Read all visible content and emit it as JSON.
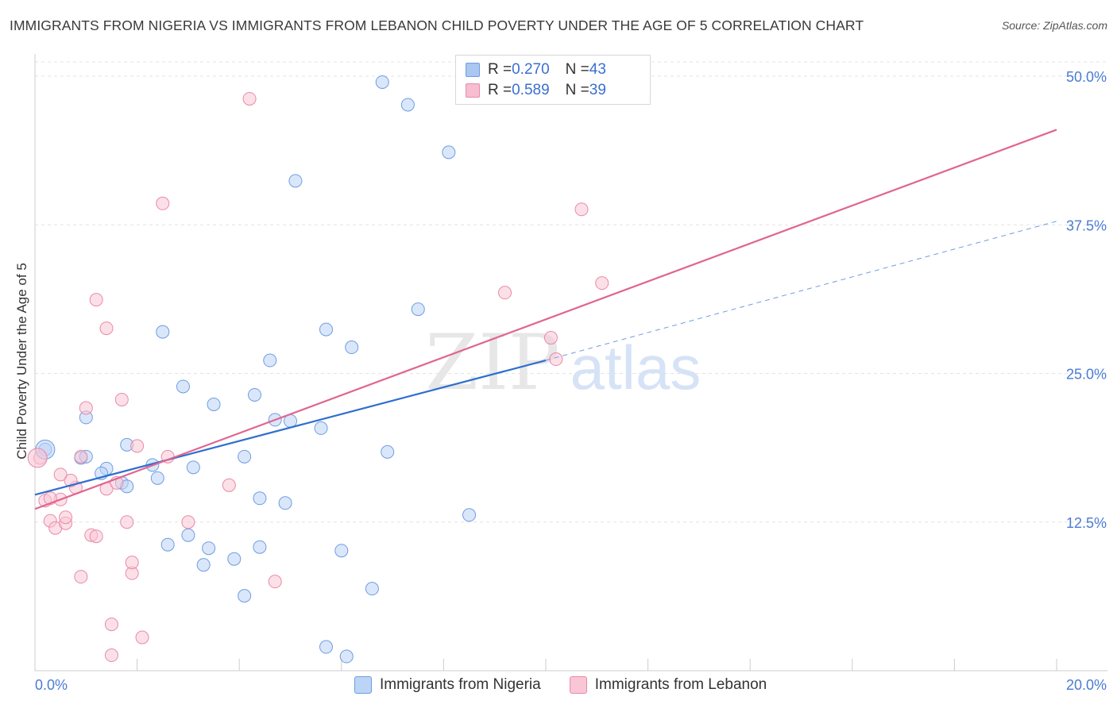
{
  "title": "IMMIGRANTS FROM NIGERIA VS IMMIGRANTS FROM LEBANON CHILD POVERTY UNDER THE AGE OF 5 CORRELATION CHART",
  "source": "Source: ZipAtlas.com",
  "watermark": {
    "zip": "ZIP",
    "atlas": "atlas"
  },
  "legend_box": {
    "rows": [
      {
        "r_label": "R = ",
        "r_value": "0.270",
        "n_label": "N = ",
        "n_value": "43",
        "color": "#a9c7f0",
        "border": "#6e9de0"
      },
      {
        "r_label": "R = ",
        "r_value": "0.589",
        "n_label": "N = ",
        "n_value": "39",
        "color": "#f7bdd0",
        "border": "#e88aa9"
      }
    ]
  },
  "bottom_legend": [
    {
      "label": "Immigrants from Nigeria",
      "color": "#bcd4f5",
      "border": "#6e9de0"
    },
    {
      "label": "Immigrants from Lebanon",
      "color": "#f9c6d6",
      "border": "#e88aa9"
    }
  ],
  "chart_data": {
    "type": "scatter",
    "title": "IMMIGRANTS FROM NIGERIA VS IMMIGRANTS FROM LEBANON CHILD POVERTY UNDER THE AGE OF 5 CORRELATION CHART",
    "xlabel": "",
    "ylabel": "Child Poverty Under the Age of 5",
    "xlim": [
      0,
      20
    ],
    "ylim": [
      0,
      50
    ],
    "x_tick_labels": [
      "0.0%",
      "20.0%"
    ],
    "y_ticks": [
      12.5,
      25.0,
      37.5,
      50.0
    ],
    "y_tick_labels": [
      "12.5%",
      "25.0%",
      "37.5%",
      "50.0%"
    ],
    "grid": true,
    "legend_position": "top-center",
    "series": [
      {
        "name": "Immigrants from Nigeria",
        "color": "#6e9de0",
        "fill": "#bcd4f5",
        "points": [
          [
            0.2,
            18.6
          ],
          [
            0.9,
            17.9
          ],
          [
            1.0,
            21.3
          ],
          [
            1.0,
            18.0
          ],
          [
            1.4,
            17.0
          ],
          [
            1.3,
            16.6
          ],
          [
            1.7,
            15.8
          ],
          [
            1.8,
            15.5
          ],
          [
            1.8,
            19.0
          ],
          [
            2.5,
            28.5
          ],
          [
            2.3,
            17.3
          ],
          [
            2.4,
            16.2
          ],
          [
            2.9,
            23.9
          ],
          [
            2.6,
            10.6
          ],
          [
            3.0,
            11.4
          ],
          [
            3.4,
            10.3
          ],
          [
            3.5,
            22.4
          ],
          [
            3.3,
            8.9
          ],
          [
            3.1,
            17.1
          ],
          [
            4.1,
            18.0
          ],
          [
            3.9,
            9.4
          ],
          [
            4.3,
            23.2
          ],
          [
            4.4,
            14.5
          ],
          [
            4.4,
            10.4
          ],
          [
            4.6,
            26.1
          ],
          [
            4.7,
            21.1
          ],
          [
            4.9,
            14.1
          ],
          [
            5.0,
            21.0
          ],
          [
            5.1,
            41.2
          ],
          [
            5.6,
            20.4
          ],
          [
            5.7,
            28.7
          ],
          [
            6.0,
            10.1
          ],
          [
            6.2,
            27.2
          ],
          [
            6.6,
            6.9
          ],
          [
            6.9,
            18.4
          ],
          [
            7.5,
            30.4
          ],
          [
            7.3,
            47.6
          ],
          [
            8.1,
            43.6
          ],
          [
            8.5,
            13.1
          ],
          [
            6.1,
            1.2
          ],
          [
            6.8,
            49.5
          ],
          [
            5.7,
            2.0
          ],
          [
            4.1,
            6.3
          ]
        ]
      },
      {
        "name": "Immigrants from Lebanon",
        "color": "#e88aa9",
        "fill": "#f9c6d6",
        "points": [
          [
            0.1,
            17.9
          ],
          [
            0.2,
            14.3
          ],
          [
            0.3,
            12.6
          ],
          [
            0.4,
            12.0
          ],
          [
            0.5,
            14.4
          ],
          [
            0.6,
            12.4
          ],
          [
            0.6,
            12.9
          ],
          [
            0.8,
            15.4
          ],
          [
            0.9,
            7.9
          ],
          [
            0.9,
            18.0
          ],
          [
            1.0,
            22.1
          ],
          [
            1.1,
            11.4
          ],
          [
            1.2,
            11.3
          ],
          [
            1.2,
            31.2
          ],
          [
            1.4,
            15.3
          ],
          [
            1.4,
            28.8
          ],
          [
            1.5,
            3.9
          ],
          [
            1.5,
            1.3
          ],
          [
            1.7,
            22.8
          ],
          [
            1.8,
            12.5
          ],
          [
            1.9,
            8.2
          ],
          [
            1.9,
            9.1
          ],
          [
            2.0,
            18.9
          ],
          [
            2.1,
            2.8
          ],
          [
            2.5,
            39.3
          ],
          [
            2.6,
            18.0
          ],
          [
            3.0,
            12.5
          ],
          [
            3.8,
            15.6
          ],
          [
            4.2,
            48.1
          ],
          [
            4.7,
            7.5
          ],
          [
            9.2,
            31.8
          ],
          [
            10.1,
            28.0
          ],
          [
            10.2,
            26.2
          ],
          [
            10.7,
            38.8
          ],
          [
            11.1,
            32.6
          ],
          [
            0.3,
            14.5
          ],
          [
            0.7,
            16.0
          ],
          [
            1.6,
            15.8
          ],
          [
            0.5,
            16.5
          ]
        ]
      }
    ],
    "trend_lines": [
      {
        "series": "Immigrants from Nigeria",
        "x": [
          0,
          10
        ],
        "y": [
          14.8,
          26.1
        ],
        "dashed_extension_to_x": 20,
        "dashed_y_end": 37.8
      },
      {
        "series": "Immigrants from Lebanon",
        "x": [
          0,
          20
        ],
        "y": [
          13.6,
          45.5
        ]
      }
    ]
  }
}
